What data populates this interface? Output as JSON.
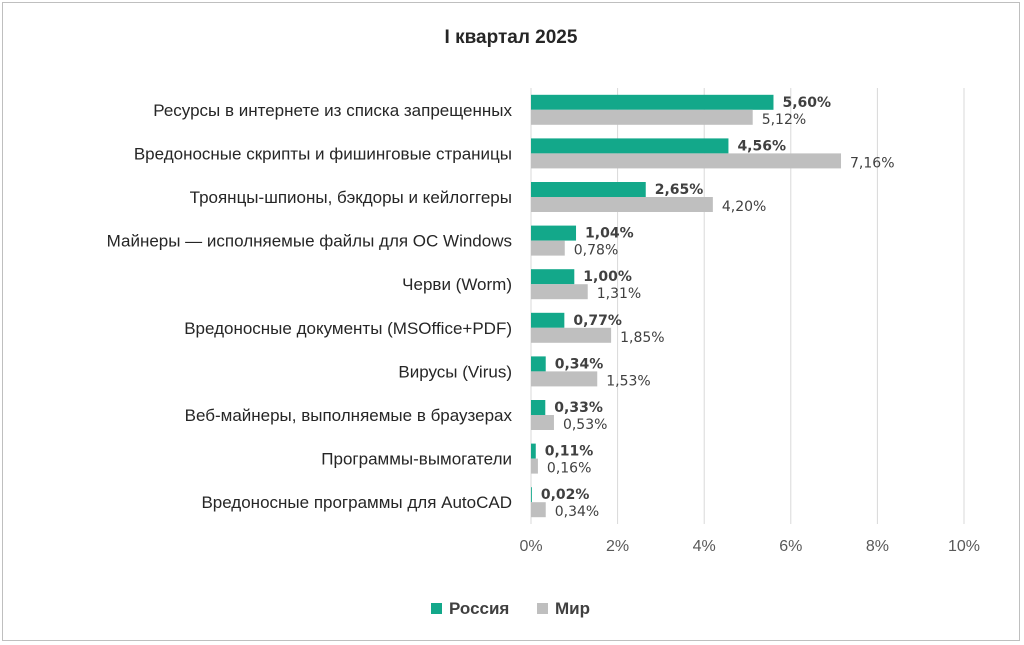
{
  "chart_data": {
    "type": "bar",
    "orientation": "horizontal",
    "title": "I квартал 2025",
    "categories": [
      "Ресурсы в интернете из списка запрещенных",
      "Вредоносные скрипты и фишинговые страницы",
      "Троянцы-шпионы, бэкдоры и кейлоггеры",
      "Майнеры — исполняемые файлы для ОС Windows",
      "Черви (Worm)",
      "Вредоносные документы (MSOffice+PDF)",
      "Вирусы (Virus)",
      "Веб-майнеры, выполняемые в браузерах",
      "Программы-вымогатели",
      "Вредоносные программы для AutoCAD"
    ],
    "series": [
      {
        "name": "Россия",
        "color": "#13a88a",
        "values": [
          5.6,
          4.56,
          2.65,
          1.04,
          1.0,
          0.77,
          0.34,
          0.33,
          0.11,
          0.02
        ],
        "labels": [
          "5,60%",
          "4,56%",
          "2,65%",
          "1,04%",
          "1,00%",
          "0,77%",
          "0,34%",
          "0,33%",
          "0,11%",
          "0,02%"
        ]
      },
      {
        "name": "Мир",
        "color": "#bfbfbf",
        "values": [
          5.12,
          7.16,
          4.2,
          0.78,
          1.31,
          1.85,
          1.53,
          0.53,
          0.16,
          0.34
        ],
        "labels": [
          "5,12%",
          "7,16%",
          "4,20%",
          "0,78%",
          "1,31%",
          "1,85%",
          "1,53%",
          "0,53%",
          "0,16%",
          "0,34%"
        ]
      }
    ],
    "xlim": [
      0,
      10
    ],
    "xticks": [
      0,
      2,
      4,
      6,
      8,
      10
    ],
    "xtick_labels": [
      "0%",
      "2%",
      "4%",
      "6%",
      "8%",
      "10%"
    ],
    "grid": true,
    "legend": "bottom",
    "gridline_color": "#d9d9d9"
  }
}
